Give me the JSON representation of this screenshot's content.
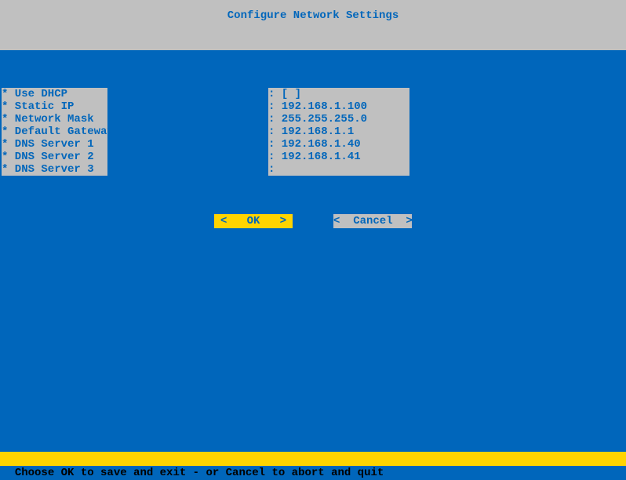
{
  "colors": {
    "background": "#0066bb",
    "panel_bg": "#c0c0c0",
    "panel_fg": "#0066bb",
    "ok_bg": "#ffd400",
    "ok_fg": "#0066bb",
    "cancel_bg": "#c0c0c0",
    "cancel_fg": "#0066bb",
    "status_bg": "#ffd400",
    "status_fg": "#000000"
  },
  "title": "Configure Network Settings",
  "fields": [
    {
      "label": "* Use DHCP",
      "value": ": [ ]"
    },
    {
      "label": "* Static IP",
      "value": ": 192.168.1.100"
    },
    {
      "label": "* Network Mask",
      "value": ": 255.255.255.0"
    },
    {
      "label": "* Default Gateway",
      "value": ": 192.168.1.1"
    },
    {
      "label": "* DNS Server 1",
      "value": ": 192.168.1.40"
    },
    {
      "label": "* DNS Server 2",
      "value": ": 192.168.1.41"
    },
    {
      "label": "* DNS Server 3",
      "value": ":"
    }
  ],
  "buttons": {
    "ok": "<   OK   >",
    "cancel": "<  Cancel  >"
  },
  "status": "Choose OK to save and exit - or Cancel to abort and quit"
}
